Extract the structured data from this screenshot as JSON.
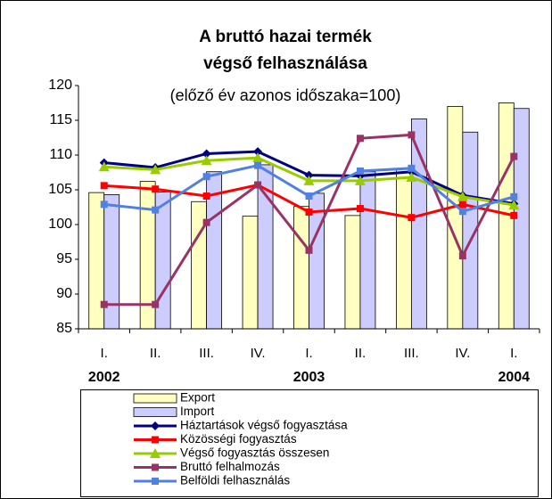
{
  "chart_data": {
    "type": "bar_line",
    "title": [
      "A bruttó hazai termék",
      "végső felhasználása"
    ],
    "subtitle": "(előző év azonos időszaka=100)",
    "categories": [
      "I.",
      "II.",
      "III.",
      "IV.",
      "I.",
      "II.",
      "III.",
      "IV.",
      "I."
    ],
    "years": [
      "2002",
      null,
      null,
      null,
      "2003",
      null,
      null,
      null,
      "2004"
    ],
    "ylim": [
      85,
      120
    ],
    "yticks": [
      85,
      90,
      95,
      100,
      105,
      110,
      115,
      120
    ],
    "grid": false,
    "series": [
      {
        "name": "Export",
        "kind": "bar",
        "color": "#ffffc0",
        "values": [
          104.6,
          106.2,
          103.3,
          101.2,
          102.6,
          101.3,
          108.0,
          117.0,
          117.5
        ]
      },
      {
        "name": "Import",
        "kind": "bar",
        "color": "#ccccff",
        "values": [
          104.3,
          104.7,
          107.6,
          108.6,
          104.5,
          107.6,
          115.2,
          113.3,
          116.7
        ]
      },
      {
        "name": "Háztartások végső fogyasztása",
        "kind": "line",
        "marker": "diamond",
        "color": "#000080",
        "values": [
          108.9,
          108.2,
          110.2,
          110.5,
          107.1,
          107.0,
          107.6,
          104.2,
          103.0
        ]
      },
      {
        "name": "Közösségi fogyasztás",
        "kind": "line",
        "marker": "square",
        "color": "#ff0000",
        "values": [
          105.6,
          105.1,
          104.1,
          105.7,
          101.8,
          102.3,
          101.0,
          102.9,
          101.3
        ]
      },
      {
        "name": "Végső fogyasztás összesen",
        "kind": "line",
        "marker": "triangle",
        "color": "#99cc00",
        "values": [
          108.3,
          107.9,
          109.2,
          109.6,
          106.3,
          106.3,
          106.8,
          104.0,
          102.8
        ]
      },
      {
        "name": "Bruttó felhalmozás",
        "kind": "line",
        "marker": "square",
        "color": "#993366",
        "values": [
          88.5,
          88.5,
          100.3,
          105.7,
          96.3,
          112.4,
          112.9,
          95.5,
          109.8
        ]
      },
      {
        "name": "Belföldi felhasználás",
        "kind": "line",
        "marker": "square",
        "color": "#5080e0",
        "values": [
          102.9,
          102.1,
          106.9,
          108.5,
          104.1,
          107.7,
          108.1,
          101.9,
          104.0
        ]
      }
    ]
  }
}
